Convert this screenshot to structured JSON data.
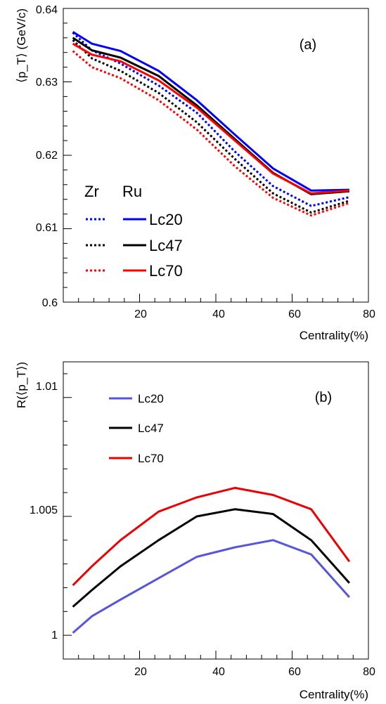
{
  "chart_data": [
    {
      "panel": "(a)",
      "type": "line",
      "xlabel": "Centrality(%)",
      "ylabel": "⟨p_T⟩ (GeV/c)",
      "xlim": [
        0,
        80
      ],
      "ylim": [
        0.6,
        0.64
      ],
      "xticks": [
        "20",
        "40",
        "60",
        "80"
      ],
      "yticks": [
        "0.6",
        "0.61",
        "0.62",
        "0.63",
        "0.64"
      ],
      "x": [
        2.5,
        7.5,
        15,
        25,
        35,
        45,
        55,
        65,
        75
      ],
      "legend_headers": [
        "Zr",
        "Ru"
      ],
      "series": [
        {
          "name": "Lc20",
          "system": "Zr",
          "style": "dotted",
          "color": "#0000ff",
          "values": [
            0.6367,
            0.6343,
            0.6325,
            0.6295,
            0.6258,
            0.6205,
            0.6158,
            0.6131,
            0.6143
          ]
        },
        {
          "name": "Lc47",
          "system": "Zr",
          "style": "dotted",
          "color": "#000000",
          "values": [
            0.6357,
            0.6332,
            0.6315,
            0.6285,
            0.6245,
            0.6195,
            0.6148,
            0.6122,
            0.6138
          ]
        },
        {
          "name": "Lc70",
          "system": "Zr",
          "style": "dotted",
          "color": "#ff0000",
          "values": [
            0.6342,
            0.632,
            0.6305,
            0.6275,
            0.6235,
            0.6185,
            0.6142,
            0.6118,
            0.6135
          ]
        },
        {
          "name": "Lc20",
          "system": "Ru",
          "style": "solid",
          "color": "#0000ff",
          "values": [
            0.6368,
            0.6352,
            0.6342,
            0.6315,
            0.6275,
            0.6228,
            0.6182,
            0.6152,
            0.6153
          ]
        },
        {
          "name": "Lc47",
          "system": "Ru",
          "style": "solid",
          "color": "#000000",
          "values": [
            0.636,
            0.6343,
            0.6333,
            0.6308,
            0.6268,
            0.6222,
            0.6176,
            0.6147,
            0.6151
          ]
        },
        {
          "name": "Lc70",
          "system": "Ru",
          "style": "solid",
          "color": "#ff0000",
          "values": [
            0.6352,
            0.6337,
            0.6328,
            0.6302,
            0.6265,
            0.622,
            0.6175,
            0.6148,
            0.6152
          ]
        }
      ]
    },
    {
      "panel": "(b)",
      "type": "line",
      "xlabel": "Centrality(%)",
      "ylabel": "R(⟨p_T⟩)",
      "xlim": [
        0,
        80
      ],
      "ylim": [
        0.999,
        1.0115
      ],
      "xticks": [
        "20",
        "40",
        "60",
        "80"
      ],
      "yticks": [
        "1",
        "1.005",
        "1.01"
      ],
      "x": [
        2.5,
        7.5,
        15,
        25,
        35,
        45,
        55,
        65,
        75
      ],
      "series": [
        {
          "name": "Lc20",
          "color": "#5555dd",
          "values": [
            1.0001,
            1.0008,
            1.0015,
            1.0024,
            1.0033,
            1.0037,
            1.004,
            1.0034,
            1.0016
          ]
        },
        {
          "name": "Lc47",
          "color": "#000000",
          "values": [
            1.0012,
            1.0019,
            1.0029,
            1.004,
            1.005,
            1.0053,
            1.0051,
            1.004,
            1.0022
          ]
        },
        {
          "name": "Lc70",
          "color": "#ee0000",
          "values": [
            1.0021,
            1.0029,
            1.004,
            1.0052,
            1.0058,
            1.0062,
            1.0059,
            1.0053,
            1.0031
          ]
        }
      ]
    }
  ]
}
